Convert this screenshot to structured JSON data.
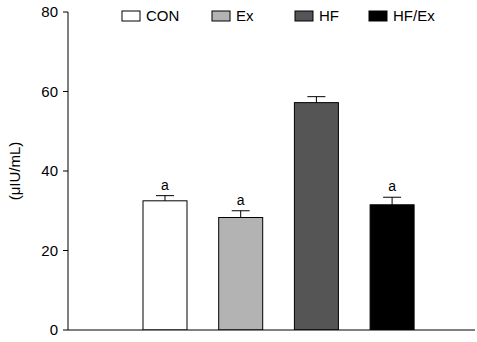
{
  "chart_data": {
    "type": "bar",
    "y_label": "(μIU/mL)",
    "categories": [
      "CON",
      "Ex",
      "HF",
      "HF/Ex"
    ],
    "values": [
      32.5,
      28.3,
      57.2,
      31.5
    ],
    "errors": [
      1.3,
      1.7,
      1.5,
      1.9
    ],
    "annotations": [
      "a",
      "a",
      null,
      "a"
    ],
    "colors": [
      "#ffffff",
      "#b3b3b3",
      "#555555",
      "#000000"
    ],
    "ylim": [
      0,
      80
    ],
    "yticks": [
      0,
      20,
      40,
      60,
      80
    ],
    "legend": "top",
    "tick_labels": "y",
    "grid": false
  }
}
